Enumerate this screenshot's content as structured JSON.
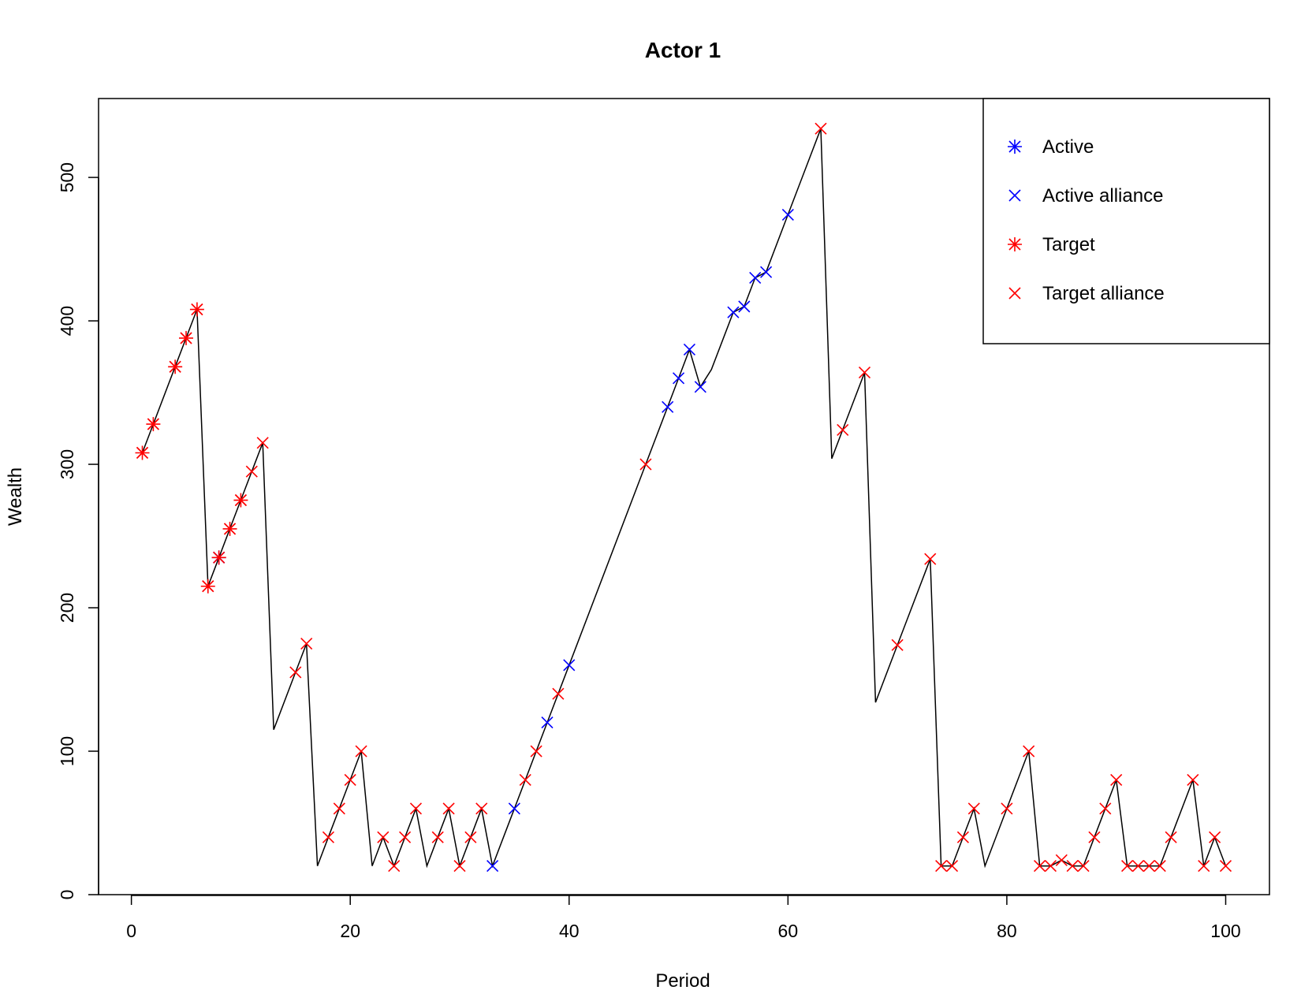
{
  "chart_data": {
    "type": "line",
    "title": "Actor 1",
    "xlabel": "Period",
    "ylabel": "Wealth",
    "xlim": [
      -3,
      104
    ],
    "ylim": [
      0,
      555
    ],
    "x_ticks": [
      0,
      20,
      40,
      60,
      80,
      100
    ],
    "y_ticks": [
      0,
      100,
      200,
      300,
      400,
      500
    ],
    "grid": false,
    "legend_position": "top-right",
    "colors": {
      "line": "#000000",
      "active": "#0000ff",
      "target": "#ff0000"
    },
    "legend": [
      {
        "label": "Active",
        "color": "#0000ff",
        "marker": "star"
      },
      {
        "label": "Active alliance",
        "color": "#0000ff",
        "marker": "cross"
      },
      {
        "label": "Target",
        "color": "#ff0000",
        "marker": "star"
      },
      {
        "label": "Target alliance",
        "color": "#ff0000",
        "marker": "cross"
      }
    ],
    "line": [
      [
        1,
        308
      ],
      [
        2,
        328
      ],
      [
        4,
        368
      ],
      [
        5,
        388
      ],
      [
        6,
        408
      ],
      [
        7,
        215
      ],
      [
        8,
        235
      ],
      [
        9,
        255
      ],
      [
        10,
        275
      ],
      [
        11,
        295
      ],
      [
        12,
        315
      ],
      [
        13,
        115
      ],
      [
        15,
        155
      ],
      [
        16,
        175
      ],
      [
        17,
        20
      ],
      [
        18,
        40
      ],
      [
        19,
        60
      ],
      [
        20,
        80
      ],
      [
        21,
        100
      ],
      [
        22,
        20
      ],
      [
        23,
        40
      ],
      [
        24,
        20
      ],
      [
        25,
        40
      ],
      [
        26,
        60
      ],
      [
        27,
        20
      ],
      [
        28,
        40
      ],
      [
        29,
        60
      ],
      [
        30,
        20
      ],
      [
        31,
        40
      ],
      [
        32,
        60
      ],
      [
        33,
        20
      ],
      [
        35,
        60
      ],
      [
        36,
        80
      ],
      [
        37,
        100
      ],
      [
        38,
        120
      ],
      [
        39,
        140
      ],
      [
        40,
        160
      ],
      [
        47,
        300
      ],
      [
        49,
        340
      ],
      [
        50,
        360
      ],
      [
        51,
        380
      ],
      [
        52,
        354
      ],
      [
        53,
        366
      ],
      [
        55,
        406
      ],
      [
        56,
        410
      ],
      [
        57,
        430
      ],
      [
        58,
        434
      ],
      [
        60,
        474
      ],
      [
        63,
        534
      ],
      [
        64,
        304
      ],
      [
        65,
        324
      ],
      [
        67,
        364
      ],
      [
        68,
        134
      ],
      [
        70,
        174
      ],
      [
        73,
        234
      ],
      [
        74,
        20
      ],
      [
        75,
        20
      ],
      [
        76,
        40
      ],
      [
        77,
        60
      ],
      [
        78,
        20
      ],
      [
        80,
        60
      ],
      [
        82,
        100
      ],
      [
        83,
        20
      ],
      [
        84,
        20
      ],
      [
        85,
        24
      ],
      [
        86,
        20
      ],
      [
        87,
        20
      ],
      [
        88,
        40
      ],
      [
        89,
        60
      ],
      [
        90,
        80
      ],
      [
        91,
        20
      ],
      [
        92,
        20
      ],
      [
        93,
        20
      ],
      [
        94,
        20
      ],
      [
        95,
        40
      ],
      [
        97,
        80
      ],
      [
        98,
        20
      ],
      [
        99,
        40
      ],
      [
        100,
        20
      ]
    ],
    "series": [
      {
        "name": "Active",
        "marker": "star",
        "color": "#0000ff",
        "points": [
          [
            8,
            235
          ]
        ]
      },
      {
        "name": "Active alliance",
        "marker": "cross",
        "color": "#0000ff",
        "points": [
          [
            33,
            20
          ],
          [
            35,
            60
          ],
          [
            38,
            120
          ],
          [
            40,
            160
          ],
          [
            49,
            340
          ],
          [
            50,
            360
          ],
          [
            51,
            380
          ],
          [
            52,
            354
          ],
          [
            55,
            406
          ],
          [
            56,
            410
          ],
          [
            57,
            430
          ],
          [
            58,
            434
          ],
          [
            60,
            474
          ]
        ]
      },
      {
        "name": "Target",
        "marker": "star",
        "color": "#ff0000",
        "points": [
          [
            1,
            308
          ],
          [
            2,
            328
          ],
          [
            4,
            368
          ],
          [
            5,
            388
          ],
          [
            6,
            408
          ],
          [
            7,
            215
          ],
          [
            8,
            235
          ],
          [
            9,
            255
          ],
          [
            10,
            275
          ]
        ]
      },
      {
        "name": "Target alliance",
        "marker": "cross",
        "color": "#ff0000",
        "points": [
          [
            1,
            308
          ],
          [
            2,
            328
          ],
          [
            4,
            368
          ],
          [
            5,
            388
          ],
          [
            6,
            408
          ],
          [
            7,
            215
          ],
          [
            8,
            235
          ],
          [
            9,
            255
          ],
          [
            10,
            275
          ],
          [
            11,
            295
          ],
          [
            12,
            315
          ],
          [
            15,
            155
          ],
          [
            16,
            175
          ],
          [
            18,
            40
          ],
          [
            19,
            60
          ],
          [
            20,
            80
          ],
          [
            21,
            100
          ],
          [
            23,
            40
          ],
          [
            24,
            20
          ],
          [
            25,
            40
          ],
          [
            26,
            60
          ],
          [
            28,
            40
          ],
          [
            29,
            60
          ],
          [
            30,
            20
          ],
          [
            31,
            40
          ],
          [
            32,
            60
          ],
          [
            36,
            80
          ],
          [
            37,
            100
          ],
          [
            39,
            140
          ],
          [
            47,
            300
          ],
          [
            63,
            534
          ],
          [
            65,
            324
          ],
          [
            67,
            364
          ],
          [
            70,
            174
          ],
          [
            73,
            234
          ],
          [
            74,
            20
          ],
          [
            75,
            20
          ],
          [
            76,
            40
          ],
          [
            77,
            60
          ],
          [
            80,
            60
          ],
          [
            82,
            100
          ],
          [
            83,
            20
          ],
          [
            84,
            20
          ],
          [
            85,
            24
          ],
          [
            86,
            20
          ],
          [
            87,
            20
          ],
          [
            88,
            40
          ],
          [
            89,
            60
          ],
          [
            90,
            80
          ],
          [
            91,
            20
          ],
          [
            92,
            20
          ],
          [
            93,
            20
          ],
          [
            94,
            20
          ],
          [
            95,
            40
          ],
          [
            97,
            80
          ],
          [
            98,
            20
          ],
          [
            99,
            40
          ],
          [
            100,
            20
          ]
        ]
      }
    ]
  }
}
